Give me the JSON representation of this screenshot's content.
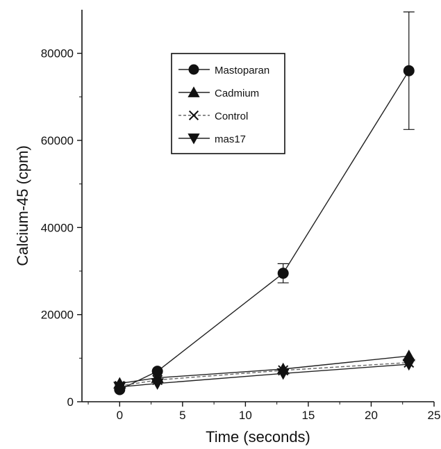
{
  "chart_data": {
    "type": "line",
    "xlabel": "Time (seconds)",
    "ylabel": "Calcium-45 (cpm)",
    "xlim": [
      -3,
      25
    ],
    "ylim": [
      0,
      90000
    ],
    "x_ticks": [
      0,
      5,
      10,
      15,
      20,
      25
    ],
    "y_ticks": [
      0,
      20000,
      40000,
      60000,
      80000
    ],
    "x_tick_labels": [
      "0",
      "5",
      "10",
      "15",
      "20",
      "25"
    ],
    "y_tick_labels": [
      "0",
      "20000",
      "40000",
      "60000",
      "80000"
    ],
    "grid": false,
    "legend_position": "upper-center",
    "series": [
      {
        "name": "Mastoparan",
        "marker": "circle",
        "line_style": "solid",
        "x": [
          0,
          3,
          13,
          23
        ],
        "y": [
          2800,
          7000,
          29500,
          76000
        ],
        "error": [
          0,
          0,
          2200,
          13500
        ]
      },
      {
        "name": "Cadmium",
        "marker": "triangle-up",
        "line_style": "solid",
        "x": [
          0,
          3,
          13,
          23
        ],
        "y": [
          4200,
          5500,
          7500,
          10500
        ],
        "error": [
          0,
          0,
          0,
          0
        ]
      },
      {
        "name": "Control",
        "marker": "x",
        "line_style": "dashed",
        "x": [
          0,
          3,
          13,
          23
        ],
        "y": [
          3600,
          5000,
          7200,
          9000
        ],
        "error": [
          0,
          0,
          0,
          0
        ]
      },
      {
        "name": "mas17",
        "marker": "triangle-down",
        "line_style": "solid",
        "x": [
          0,
          3,
          13,
          23
        ],
        "y": [
          3400,
          4200,
          6500,
          8600
        ],
        "error": [
          0,
          0,
          0,
          0
        ]
      }
    ]
  }
}
